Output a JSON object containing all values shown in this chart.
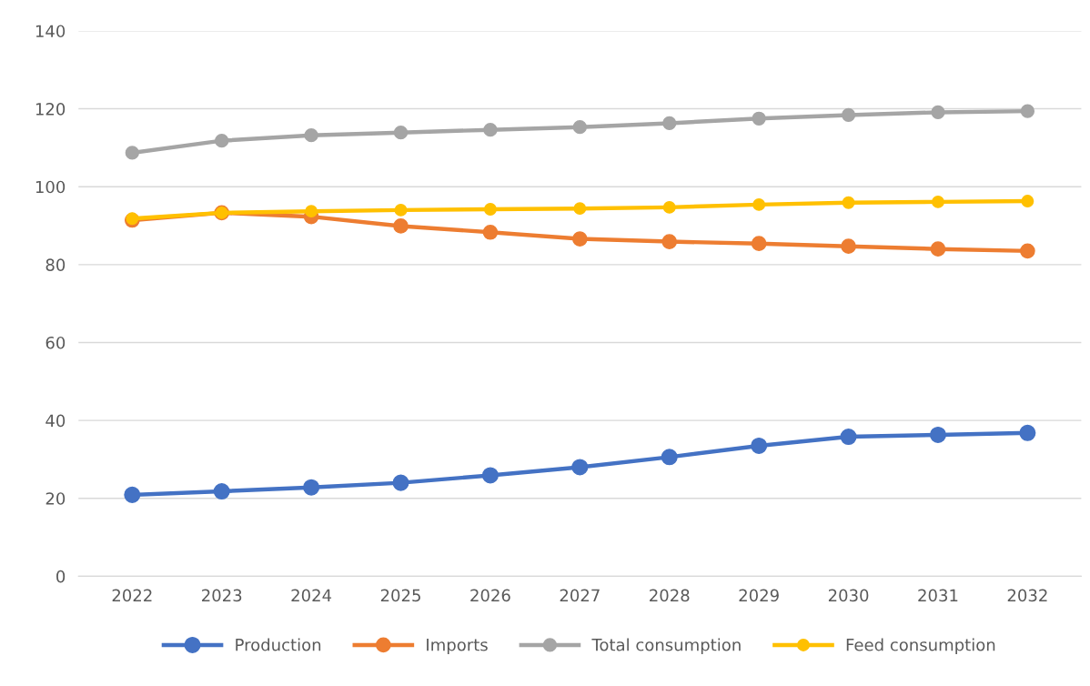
{
  "chart_data": {
    "type": "line",
    "categories": [
      "2022",
      "2023",
      "2024",
      "2025",
      "2026",
      "2027",
      "2028",
      "2029",
      "2030",
      "2031",
      "2032"
    ],
    "series": [
      {
        "name": "Production",
        "color": "#4472c4",
        "values": [
          20.9,
          21.8,
          22.8,
          24.0,
          25.9,
          28.0,
          30.6,
          33.5,
          35.8,
          36.3,
          36.8
        ]
      },
      {
        "name": "Imports",
        "color": "#ed7d31",
        "values": [
          91.4,
          93.3,
          92.3,
          89.9,
          88.3,
          86.6,
          85.9,
          85.4,
          84.7,
          84.0,
          83.5
        ]
      },
      {
        "name": "Total consumption",
        "color": "#a5a5a5",
        "values": [
          108.7,
          111.8,
          113.2,
          113.9,
          114.6,
          115.3,
          116.3,
          117.5,
          118.4,
          119.1,
          119.4
        ]
      },
      {
        "name": "Feed consumption",
        "color": "#ffc000",
        "values": [
          91.8,
          93.3,
          93.7,
          94.0,
          94.2,
          94.4,
          94.7,
          95.4,
          95.9,
          96.1,
          96.3
        ]
      }
    ],
    "ylim": [
      0,
      140
    ],
    "yticks": [
      0,
      20,
      40,
      60,
      80,
      100,
      120,
      140
    ],
    "grid": "y",
    "legend": "bottom",
    "marker": "circle",
    "line_style": "solid"
  }
}
